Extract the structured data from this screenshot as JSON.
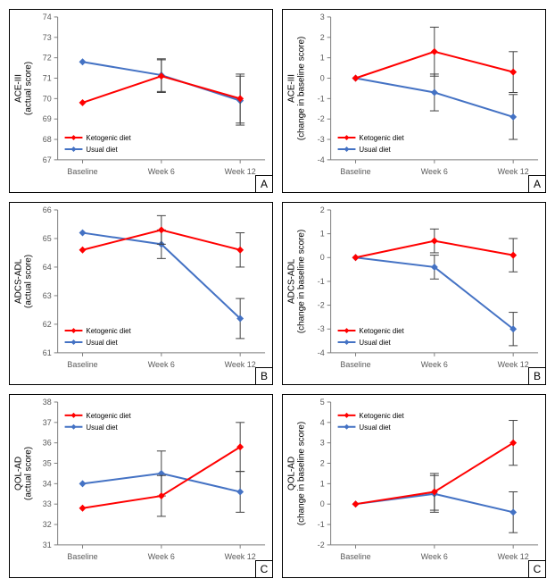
{
  "global": {
    "categories": [
      "Baseline",
      "Week 6",
      "Week 12"
    ],
    "series_names": {
      "keto": "Ketogenic diet",
      "usual": "Usual diet"
    },
    "colors": {
      "keto": "#ff0000",
      "usual": "#4472c4",
      "axis": "#7f7f7f",
      "tick_text": "#595959",
      "grid": "#d9d9d9",
      "error_bar": "#404040",
      "background": "#ffffff",
      "border": "#000000"
    },
    "fonts": {
      "axis_label_size": 10,
      "tick_size": 9,
      "legend_size": 8
    },
    "line_width": 2,
    "marker_size": 4,
    "error_cap_width": 5,
    "legend_marker": "line-with-diamond"
  },
  "panels": [
    {
      "id": "A-left",
      "corner": "A",
      "type": "line-errorbar",
      "ylabel": "ACE-III\n(actual score)",
      "ylim": [
        67,
        74
      ],
      "ytick_step": 1,
      "keto": {
        "y": [
          69.8,
          71.1,
          70.0
        ],
        "err": [
          null,
          0.8,
          1.2
        ]
      },
      "usual": {
        "y": [
          71.8,
          71.15,
          69.9
        ],
        "err": [
          null,
          0.8,
          1.2
        ]
      },
      "legend_pos": "lower-left"
    },
    {
      "id": "A-right",
      "corner": "A",
      "type": "line-errorbar",
      "ylabel": "ACE-III\n(change in baseline score)",
      "ylim": [
        -4,
        3
      ],
      "ytick_step": 1,
      "keto": {
        "y": [
          0,
          1.3,
          0.3
        ],
        "err": [
          null,
          1.2,
          1.0
        ]
      },
      "usual": {
        "y": [
          0,
          -0.7,
          -1.9
        ],
        "err": [
          null,
          0.9,
          1.1
        ]
      },
      "legend_pos": "lower-left"
    },
    {
      "id": "B-left",
      "corner": "B",
      "type": "line-errorbar",
      "ylabel": "ADCS-ADL\n(actual score)",
      "ylim": [
        61,
        66
      ],
      "ytick_step": 1,
      "keto": {
        "y": [
          64.6,
          65.3,
          64.6
        ],
        "err": [
          null,
          0.5,
          0.6
        ]
      },
      "usual": {
        "y": [
          65.2,
          64.8,
          62.2
        ],
        "err": [
          null,
          0.5,
          0.7
        ]
      },
      "legend_pos": "lower-left"
    },
    {
      "id": "B-right",
      "corner": "B",
      "type": "line-errorbar",
      "ylabel": "ADCS-ADL\n(change in baseline score)",
      "ylim": [
        -4,
        2
      ],
      "ytick_step": 1,
      "keto": {
        "y": [
          0,
          0.7,
          0.1
        ],
        "err": [
          null,
          0.5,
          0.7
        ]
      },
      "usual": {
        "y": [
          0,
          -0.4,
          -3.0
        ],
        "err": [
          null,
          0.5,
          0.7
        ]
      },
      "legend_pos": "lower-left"
    },
    {
      "id": "C-left",
      "corner": "C",
      "type": "line-errorbar",
      "ylabel": "QOL-AD\n(actual score)",
      "ylim": [
        31,
        38
      ],
      "ytick_step": 1,
      "keto": {
        "y": [
          32.8,
          33.4,
          35.8
        ],
        "err": [
          null,
          1.0,
          1.2
        ]
      },
      "usual": {
        "y": [
          34.0,
          34.5,
          33.6
        ],
        "err": [
          null,
          1.1,
          1.0
        ]
      },
      "legend_pos": "upper-left"
    },
    {
      "id": "C-right",
      "corner": "C",
      "type": "line-errorbar",
      "ylabel": "QOL-AD\n(change in baseline score)",
      "ylim": [
        -2,
        5
      ],
      "ytick_step": 1,
      "keto": {
        "y": [
          0,
          0.6,
          3.0
        ],
        "err": [
          null,
          0.9,
          1.1
        ]
      },
      "usual": {
        "y": [
          0,
          0.5,
          -0.4
        ],
        "err": [
          null,
          0.9,
          1.0
        ]
      },
      "legend_pos": "upper-left"
    }
  ]
}
